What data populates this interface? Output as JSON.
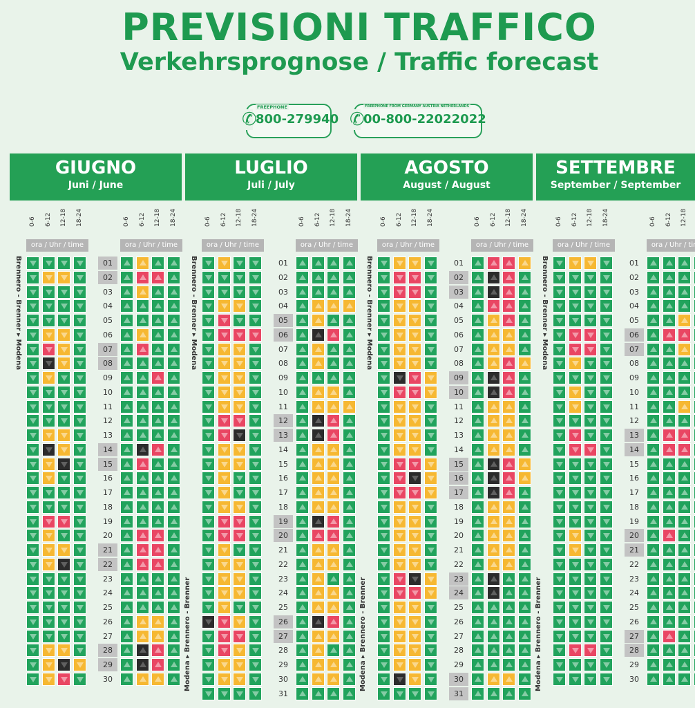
{
  "header": {
    "title": "PREVISIONI TRAFFICO",
    "subtitle": "Verkehrsprognose / Traffic forecast"
  },
  "phones": [
    {
      "label": "FREEPHONE",
      "number": "800-279940"
    },
    {
      "label": "FREEPHONE FROM GERMANY AUSTRIA NETHERLANDS",
      "number": "00-800-22022022"
    }
  ],
  "slots": [
    "0-6",
    "6-12",
    "12-18",
    "18-24"
  ],
  "time_label": "ora / Uhr / time",
  "route_south": "Brennero - Brenner ▸ Modena",
  "route_north": "Modena ▸ Brennero - Brenner",
  "legend_colors": {
    "g": "#21a35c",
    "y": "#f6b832",
    "r": "#e94663",
    "k": "#2b2b2b"
  },
  "months": [
    {
      "name": "GIUGNO",
      "sub": "Juni / June",
      "highlight": [
        "01",
        "02",
        "07",
        "08",
        "14",
        "15",
        "21",
        "22",
        "28",
        "29"
      ],
      "south": [
        "gggg",
        "gyyg",
        "gggg",
        "gggg",
        "gggg",
        "gyyg",
        "gryg",
        "gkyg",
        "gygg",
        "gggg",
        "gggg",
        "gggg",
        "gyyg",
        "gkyg",
        "gykg",
        "gygg",
        "gggg",
        "gggg",
        "grrg",
        "gygg",
        "gyyg",
        "gykg",
        "gggg",
        "gggg",
        "gggg",
        "gggg",
        "gggg",
        "gyyg",
        "gyky",
        "gyrg"
      ],
      "north": [
        "gygg",
        "grrg",
        "gygg",
        "gggg",
        "gggg",
        "gygg",
        "grgg",
        "gggg",
        "ggrg",
        "gggg",
        "gggg",
        "gggg",
        "gggg",
        "gkrg",
        "grgg",
        "gggg",
        "gggg",
        "gggg",
        "gggg",
        "grrg",
        "grrg",
        "grrg",
        "gggg",
        "gggg",
        "gggg",
        "gyyg",
        "gyyg",
        "gkrg",
        "gkrg",
        "gyyg"
      ]
    },
    {
      "name": "LUGLIO",
      "sub": "Juli / July",
      "highlight": [
        "05",
        "06",
        "12",
        "13",
        "19",
        "20",
        "26",
        "27"
      ],
      "south": [
        "gygg",
        "gggg",
        "gggg",
        "gyyg",
        "grgg",
        "grrr",
        "gyyg",
        "gyyg",
        "gyyg",
        "gyyg",
        "gyyg",
        "grrg",
        "grkg",
        "gyyg",
        "gyyg",
        "gygg",
        "gygg",
        "gyyg",
        "grrg",
        "grrg",
        "gygg",
        "gyyg",
        "gyyg",
        "gyyg",
        "gygg",
        "kryg",
        "grrg",
        "gryg",
        "gyyg",
        "gyyg",
        "gggg"
      ],
      "north": [
        "gggg",
        "gggg",
        "gggg",
        "gyyy",
        "gygg",
        "gkrg",
        "gygg",
        "gygg",
        "gggg",
        "gyyg",
        "gyyy",
        "gkrg",
        "gkrg",
        "gyyg",
        "gyyg",
        "gyyg",
        "gyyg",
        "gyyg",
        "gkrg",
        "grrg",
        "gyyg",
        "gyyg",
        "gygg",
        "gyyg",
        "gyyg",
        "gkrg",
        "gyyg",
        "gygg",
        "gyyg",
        "gyyg",
        "gggg"
      ]
    },
    {
      "name": "AGOSTO",
      "sub": "August / August",
      "highlight": [
        "02",
        "03",
        "09",
        "10",
        "15",
        "16",
        "17",
        "23",
        "24",
        "30",
        "31"
      ],
      "south": [
        "gyyg",
        "grrg",
        "grrg",
        "gyyg",
        "gyyg",
        "gyyg",
        "gyyg",
        "gyyg",
        "gkry",
        "grry",
        "gyyg",
        "gyyg",
        "gyyg",
        "gyyg",
        "grry",
        "grky",
        "grry",
        "gyyg",
        "gyyg",
        "gyyg",
        "gyyg",
        "gyyg",
        "grky",
        "grry",
        "gyyg",
        "gyyg",
        "gyyg",
        "gyyg",
        "gyyg",
        "gkyg",
        "gggg"
      ],
      "north": [
        "grry",
        "gkrg",
        "gkrg",
        "grrg",
        "gyrg",
        "gyyg",
        "gyyg",
        "gyry",
        "gkrg",
        "gkrg",
        "gyyg",
        "gyyg",
        "gyyg",
        "gyyg",
        "gkry",
        "gkry",
        "gkrg",
        "gyyg",
        "gyyg",
        "gyyg",
        "gyyg",
        "gyyg",
        "gkgg",
        "gkgg",
        "gggg",
        "gggg",
        "gggg",
        "gggg",
        "gggg",
        "gyyg",
        "gggg"
      ]
    },
    {
      "name": "SETTEMBRE",
      "sub": "September / September",
      "highlight": [
        "06",
        "07",
        "13",
        "14",
        "20",
        "21",
        "27",
        "28"
      ],
      "south": [
        "gyyg",
        "gggg",
        "gggg",
        "gggg",
        "gggg",
        "grrg",
        "grrg",
        "gygg",
        "gggg",
        "gygg",
        "gygg",
        "gggg",
        "grgg",
        "grrg",
        "gggg",
        "gggg",
        "gggg",
        "gggg",
        "gggg",
        "gygg",
        "gygg",
        "gggg",
        "gggg",
        "gggg",
        "gggg",
        "gggg",
        "gggg",
        "grrg",
        "gggg",
        "gggg"
      ],
      "north": [
        "gggg",
        "gggg",
        "gggg",
        "gggg",
        "ggyg",
        "grrg",
        "ggyg",
        "gggg",
        "gggg",
        "gggg",
        "ggyg",
        "gggg",
        "grrg",
        "grrg",
        "gggg",
        "gggg",
        "gggg",
        "gggg",
        "gggg",
        "grgg",
        "gggg",
        "gggg",
        "gggg",
        "gggg",
        "gggg",
        "gggg",
        "grgg",
        "gggg",
        "gggg",
        "gggg"
      ]
    }
  ]
}
